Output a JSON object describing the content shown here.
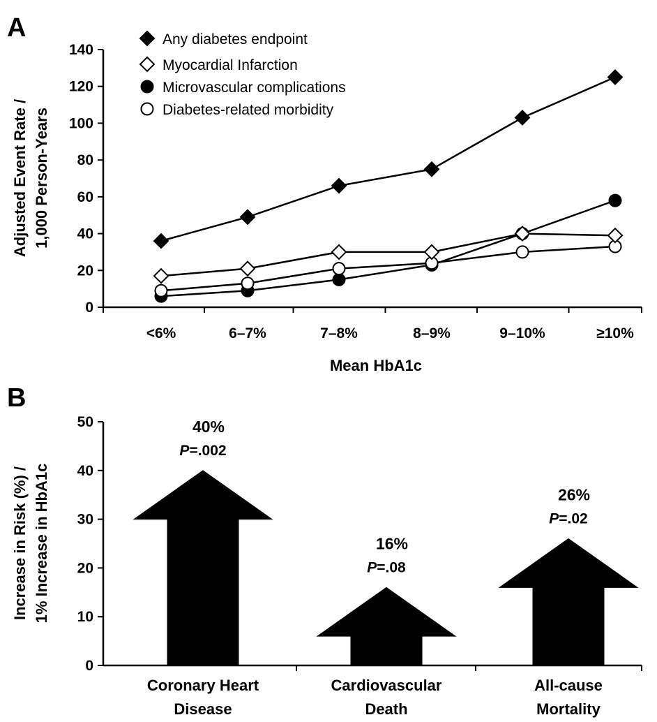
{
  "chart_data": [
    {
      "panel": "A",
      "type": "line",
      "categories": [
        "<6%",
        "6–7%",
        "7–8%",
        "8–9%",
        "9–10%",
        "≥10%"
      ],
      "xlabel": "Mean HbA1c",
      "ylabel": "Adjusted Event Rate / 1,000 Person-Years",
      "ylabel_lines": [
        "Adjusted Event Rate /",
        "1,000 Person-Years"
      ],
      "ylim": [
        0,
        140
      ],
      "yticks": [
        0,
        20,
        40,
        60,
        80,
        100,
        120,
        140
      ],
      "legend_position": "top-left",
      "grid": false,
      "series": [
        {
          "name": "Any diabetes endpoint",
          "marker": "diamond-filled",
          "values": [
            36,
            49,
            66,
            75,
            103,
            125
          ]
        },
        {
          "name": "Myocardial Infarction",
          "marker": "diamond-open",
          "values": [
            17,
            21,
            30,
            30,
            40,
            39
          ]
        },
        {
          "name": "Microvascular complications",
          "marker": "circle-filled",
          "values": [
            6,
            9,
            15,
            23,
            40,
            58
          ]
        },
        {
          "name": "Diabetes-related morbidity",
          "marker": "circle-open",
          "values": [
            9,
            13,
            21,
            24,
            30,
            33
          ]
        }
      ]
    },
    {
      "panel": "B",
      "type": "bar",
      "style": "arrows",
      "categories": [
        "Coronary Heart Disease",
        "Cardiovascular Death",
        "All-cause Mortality"
      ],
      "category_lines": [
        [
          "Coronary Heart",
          "Disease"
        ],
        [
          "Cardiovascular",
          "Death"
        ],
        [
          "All-cause",
          "Mortality"
        ]
      ],
      "values": [
        40,
        16,
        26
      ],
      "value_labels": [
        "40%",
        "16%",
        "26%"
      ],
      "p_prefix": "P",
      "p_values": [
        "=.002",
        "=.08",
        "=.02"
      ],
      "ylabel": "Increase in Risk (%) / 1% Increase in HbA1c",
      "ylabel_lines": [
        "Increase in Risk (%) /",
        "1% Increase in HbA1c"
      ],
      "ylim": [
        0,
        50
      ],
      "yticks": [
        0,
        10,
        20,
        30,
        40,
        50
      ],
      "grid": false
    }
  ],
  "colors": {
    "ink": "#000000",
    "background": "#ffffff"
  }
}
